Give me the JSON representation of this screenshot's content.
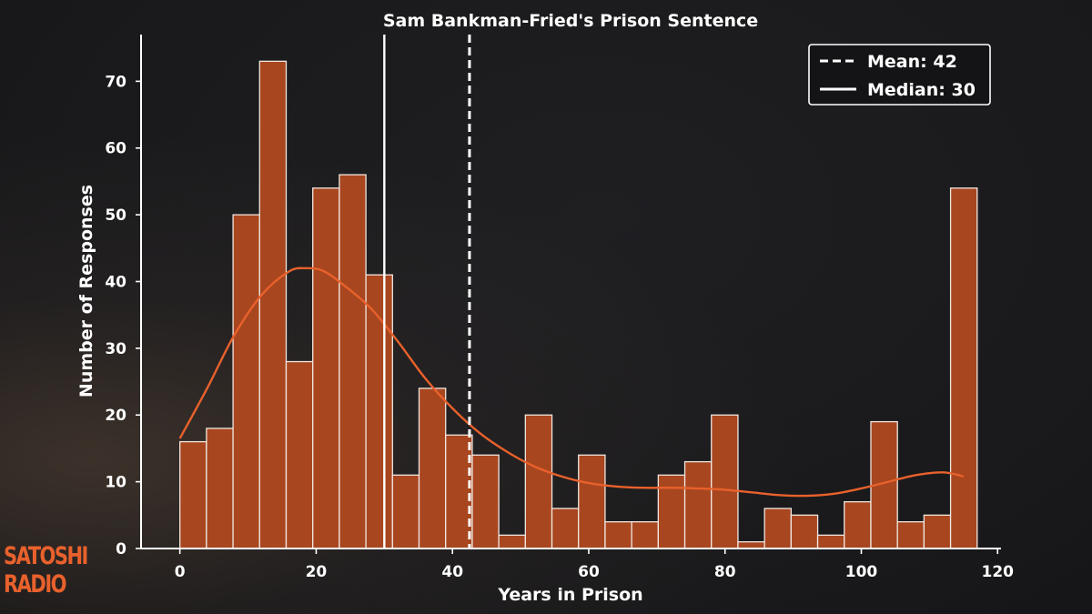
{
  "brand": {
    "line1": "SATOSHI",
    "line2": "RADIO",
    "color": "#e8612c"
  },
  "colors": {
    "bar_fill": "#a8461f",
    "bar_edge": "#f0e6e0",
    "kde": "#e8612c",
    "text": "#ffffff",
    "background": "#1b1b1d"
  },
  "chart_data": {
    "type": "bar",
    "title": "Sam Bankman-Fried's Prison Sentence",
    "xlabel": "Years in Prison",
    "ylabel": "Number of Responses",
    "xlim": [
      -5.7,
      120.5
    ],
    "ylim": [
      0,
      77
    ],
    "xticks": [
      0,
      20,
      40,
      60,
      80,
      100,
      120
    ],
    "yticks": [
      0,
      10,
      20,
      30,
      40,
      50,
      60,
      70
    ],
    "bin_width": 3.9,
    "bin_start": 0,
    "counts": [
      16,
      18,
      50,
      73,
      28,
      54,
      56,
      41,
      11,
      24,
      17,
      14,
      2,
      20,
      6,
      14,
      4,
      4,
      11,
      13,
      20,
      1,
      6,
      5,
      2,
      7,
      19,
      4,
      5,
      54
    ],
    "kde": {
      "x": [
        0,
        4,
        8,
        12,
        16,
        18.5,
        21,
        24,
        28,
        32,
        36,
        40,
        44,
        48,
        52,
        56,
        60,
        64,
        68,
        72,
        76,
        80,
        84,
        88,
        92,
        96,
        100,
        104,
        108,
        112,
        115
      ],
      "y": [
        16.5,
        24,
        32,
        38,
        41.5,
        42,
        41.6,
        39.5,
        36,
        31,
        25.5,
        21,
        17.3,
        14.5,
        12.3,
        10.8,
        9.8,
        9.3,
        9.1,
        9.1,
        9.0,
        8.8,
        8.4,
        8.0,
        7.9,
        8.2,
        9.0,
        10.0,
        11.0,
        11.4,
        10.8
      ]
    },
    "mean": 42.5,
    "median": 30,
    "legend": {
      "position": "top-right",
      "entries": [
        {
          "style": "dashed",
          "label": "Mean: 42"
        },
        {
          "style": "solid",
          "label": "Median: 30"
        }
      ]
    },
    "grid": false
  }
}
